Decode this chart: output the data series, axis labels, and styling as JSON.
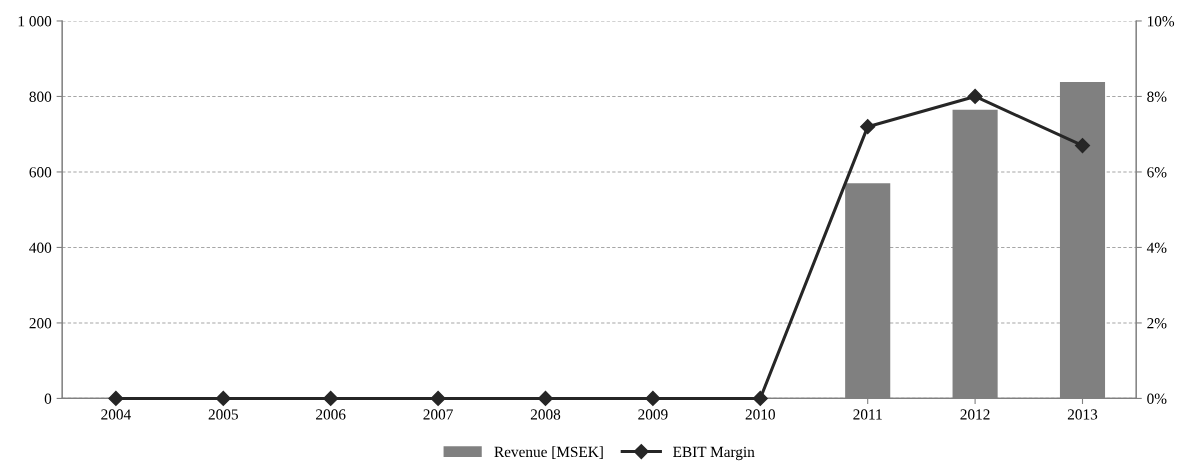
{
  "chart_data": {
    "type": "bar",
    "categories": [
      "2004",
      "2005",
      "2006",
      "2007",
      "2008",
      "2009",
      "2010",
      "2011",
      "2012",
      "2013"
    ],
    "series": [
      {
        "name": "Revenue [MSEK]",
        "color": "#808080",
        "values": [
          0,
          0,
          0,
          0,
          0,
          0,
          0,
          570,
          765,
          838
        ]
      },
      {
        "name": "EBIT Margin",
        "type": "line",
        "axis": "y2",
        "color": "#262626",
        "marker": "diamond",
        "values": [
          0,
          0,
          0,
          0,
          0,
          0,
          0,
          7.2,
          8.0,
          6.7
        ]
      }
    ],
    "ylim": [
      0,
      1000
    ],
    "yticks": [
      0,
      200,
      400,
      600,
      800,
      {
        "value": 1000,
        "label": "1 000"
      }
    ],
    "y2lim": [
      0,
      10
    ],
    "y2ticks": [
      {
        "value": 0,
        "label": "0%"
      },
      {
        "value": 2,
        "label": "2%"
      },
      {
        "value": 4,
        "label": "4%"
      },
      {
        "value": 6,
        "label": "6%"
      },
      {
        "value": 8,
        "label": "8%"
      },
      {
        "value": 10,
        "label": "10%"
      }
    ],
    "grid": "y",
    "legend": "bottom"
  }
}
